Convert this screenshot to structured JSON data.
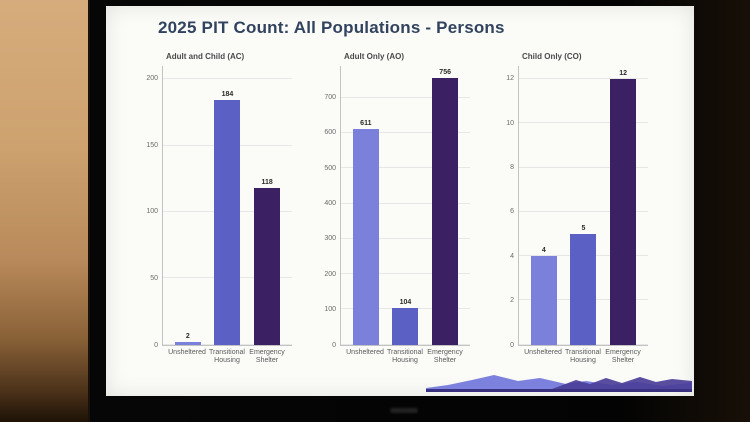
{
  "slide": {
    "title": "2025 PIT Count: All Populations - Persons",
    "title_color": "#31435e",
    "background": "#fbfbf8"
  },
  "photo": {
    "wall_color": "#cda26f",
    "bezel_color": "#060606"
  },
  "bar_colors": [
    "#7b80da",
    "#5a60c4",
    "#3b2064"
  ],
  "colors": {
    "unsheltered": "#7b80da",
    "transitional_housing": "#5a60c4",
    "emergency_shelter": "#3b2064",
    "mountain_light": "#7d81de",
    "mountain_dark": "#4a3e97",
    "mountain_base": "#3a3280"
  },
  "chart_data": [
    {
      "type": "bar",
      "title": "Adult and Child (AC)",
      "categories": [
        "Unsheltered",
        "Transitional Housing",
        "Emergency Shelter"
      ],
      "values": [
        2,
        184,
        118
      ],
      "ylim": [
        0,
        210
      ],
      "ticks": [
        0,
        50,
        100,
        150,
        200
      ],
      "grid": true,
      "legend": "none"
    },
    {
      "type": "bar",
      "title": "Adult Only (AO)",
      "categories": [
        "Unsheltered",
        "Transitional Housing",
        "Emergency Shelter"
      ],
      "values": [
        611,
        104,
        756
      ],
      "ylim": [
        0,
        790
      ],
      "ticks": [
        0,
        100,
        200,
        300,
        400,
        500,
        600,
        700
      ],
      "grid": true,
      "legend": "none"
    },
    {
      "type": "bar",
      "title": "Child Only (CO)",
      "categories": [
        "Unsheltered",
        "Transitional Housing",
        "Emergency Shelter"
      ],
      "values": [
        4,
        5,
        12
      ],
      "ylim": [
        0,
        12.6
      ],
      "ticks": [
        0,
        2,
        4,
        6,
        8,
        10,
        12
      ],
      "grid": true,
      "legend": "none"
    }
  ]
}
